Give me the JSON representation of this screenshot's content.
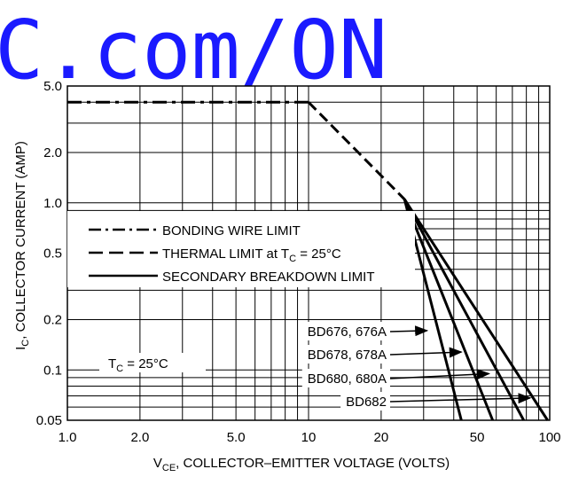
{
  "watermark": "C.com/ON",
  "chart_data": {
    "type": "line",
    "title": "",
    "xlabel": "V",
    "xlabel_sub": "CE",
    "xlabel_rest": ", COLLECTOR–EMITTER VOLTAGE (VOLTS)",
    "ylabel": "I",
    "ylabel_sub": "C",
    "ylabel_rest": ", COLLECTOR CURRENT (AMP)",
    "x_scale": "log",
    "y_scale": "log",
    "xlim": [
      1.0,
      100
    ],
    "ylim": [
      0.05,
      5.0
    ],
    "grid": true,
    "x_ticks": [
      "1.0",
      "2.0",
      "5.0",
      "10",
      "20",
      "50",
      "100"
    ],
    "x_tick_values": [
      1,
      2,
      5,
      10,
      20,
      50,
      100
    ],
    "y_ticks": [
      "0.05",
      "0.1",
      "0.2",
      "0.5",
      "1.0",
      "2.0",
      "5.0"
    ],
    "y_tick_values": [
      0.05,
      0.1,
      0.2,
      0.5,
      1.0,
      2.0,
      5.0
    ],
    "legend": {
      "placement": "center-left",
      "bonding": "BONDING WIRE LIMIT",
      "thermal": "THERMAL LIMIT at T",
      "thermal_sub": "C",
      "thermal_rest": " = 25°C",
      "secondary": "SECONDARY BREAKDOWN LIMIT"
    },
    "tc_note": "T",
    "tc_note_sub": "C",
    "tc_note_rest": " = 25°C",
    "series": [
      {
        "name": "BONDING WIRE LIMIT",
        "style": "dash-dot",
        "x": [
          1.0,
          10
        ],
        "y": [
          4.0,
          4.0
        ]
      },
      {
        "name": "THERMAL LIMIT at TC = 25°C",
        "style": "dashed",
        "x": [
          10,
          25
        ],
        "y": [
          4.0,
          1.05
        ]
      },
      {
        "name": "BD676, 676A",
        "style": "solid",
        "x": [
          25,
          43
        ],
        "y": [
          1.05,
          0.05
        ]
      },
      {
        "name": "BD678, 678A",
        "style": "solid",
        "x": [
          25,
          58
        ],
        "y": [
          1.05,
          0.05
        ]
      },
      {
        "name": "BD680, 680A",
        "style": "solid",
        "x": [
          25,
          78
        ],
        "y": [
          1.05,
          0.05
        ]
      },
      {
        "name": "BD682",
        "style": "solid",
        "x": [
          25,
          98
        ],
        "y": [
          1.05,
          0.05
        ]
      }
    ],
    "curve_labels": [
      {
        "text": "BD676, 676A",
        "arrow_x": 31,
        "arrow_y": 0.172
      },
      {
        "text": "BD678, 678A",
        "arrow_x": 43,
        "arrow_y": 0.128
      },
      {
        "text": "BD680, 680A",
        "arrow_x": 56,
        "arrow_y": 0.095
      },
      {
        "text": "BD682",
        "arrow_x": 83,
        "arrow_y": 0.068
      }
    ]
  }
}
